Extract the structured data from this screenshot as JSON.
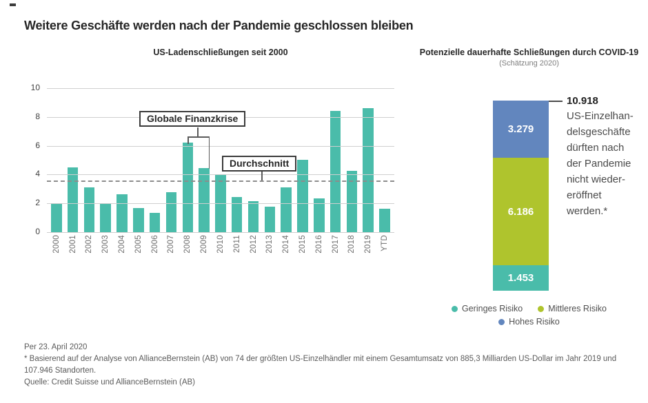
{
  "page": {
    "title": "Weitere Geschäfte werden nach der Pandemie geschlossen bleiben"
  },
  "left_chart": {
    "title": "US-Ladenschließungen seit 2000",
    "annotations": {
      "crisis": "Globale Finanzkrise",
      "average": "Durchschnitt"
    }
  },
  "right_chart": {
    "title": "Potenzielle dauerhafte Schließungen durch COVID-19",
    "subtitle": "(Schätzung 2020)",
    "total_label": "10.918",
    "description": "US-Einzelhan-\ndelsgeschäfte\ndürften nach\nder Pandemie\nnicht wieder-\neröffnet\nwerden.*",
    "legend": [
      {
        "label": "Geringes Risiko",
        "color": "#4ABCAA"
      },
      {
        "label": "Mittleres Risiko",
        "color": "#AFC42D"
      },
      {
        "label": "Hohes Risiko",
        "color": "#6286BE"
      }
    ]
  },
  "footer": {
    "line1": "Per 23. April 2020",
    "line2": "* Basierend auf der Analyse von AllianceBernstein (AB) von 74 der größten US-Einzelhändler mit einem Gesamtumsatz von 885,3 Milliarden US-Dollar im Jahr 2019 und 107.946 Standorten.",
    "line3": "Quelle: Credit Suisse und AllianceBernstein (AB)"
  },
  "chart_data": [
    {
      "type": "bar",
      "title": "US-Ladenschließungen seit 2000",
      "categories": [
        "2000",
        "2001",
        "2002",
        "2003",
        "2004",
        "2005",
        "2006",
        "2007",
        "2008",
        "2009",
        "2010",
        "2011",
        "2012",
        "2013",
        "2014",
        "2015",
        "2016",
        "2017",
        "2018",
        "2019",
        "YTD"
      ],
      "values": [
        2.0,
        4.5,
        3.1,
        2.0,
        2.65,
        1.7,
        1.35,
        2.8,
        6.2,
        4.45,
        3.95,
        2.45,
        2.15,
        1.75,
        3.1,
        5.05,
        2.35,
        8.4,
        4.25,
        8.6,
        1.65
      ],
      "xlabel": "",
      "ylabel": "",
      "ylim": [
        0,
        10
      ],
      "yticks": [
        0,
        2,
        4,
        6,
        8,
        10
      ],
      "grid": true,
      "average_line": 3.6,
      "bar_color": "#4ABCAA",
      "annotations": [
        "Globale Finanzkrise (2008–2009)",
        "Durchschnitt = 3,6"
      ]
    },
    {
      "type": "bar",
      "subtype": "stacked-single-column",
      "title": "Potenzielle dauerhafte Schließungen durch COVID-19 (Schätzung 2020)",
      "total": 10918,
      "total_label": "10.918",
      "segments": [
        {
          "name": "Hohes Risiko",
          "value": 3279,
          "label": "3.279",
          "color": "#6286BE"
        },
        {
          "name": "Mittleres Risiko",
          "value": 6186,
          "label": "6.186",
          "color": "#AFC42D"
        },
        {
          "name": "Geringes Risiko",
          "value": 1453,
          "label": "1.453",
          "color": "#4ABCAA"
        }
      ],
      "legend_position": "bottom"
    }
  ]
}
